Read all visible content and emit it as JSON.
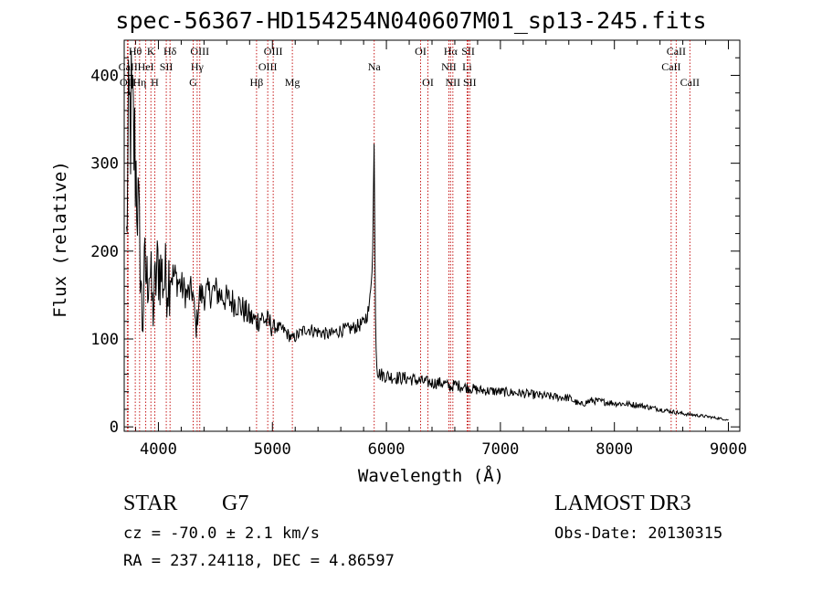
{
  "chart_data": {
    "type": "line",
    "title": "spec-56367-HD154254N040607M01_sp13-245.fits",
    "xlabel": "Wavelength (Å)",
    "ylabel": "Flux (relative)",
    "xlim": [
      3700,
      9100
    ],
    "ylim": [
      -5,
      440
    ],
    "xticks": [
      4000,
      5000,
      6000,
      7000,
      8000,
      9000
    ],
    "yticks": [
      0,
      100,
      200,
      300,
      400
    ],
    "grid": false,
    "lines": [
      {
        "label": "OII",
        "wave": 3727,
        "row": 3
      },
      {
        "label": "Hθ",
        "wave": 3797,
        "row": 1
      },
      {
        "label": "CaII",
        "wave": 3734,
        "row": 2
      },
      {
        "label": "Hη",
        "wave": 3835,
        "row": 3
      },
      {
        "label": "K",
        "wave": 3934,
        "row": 1
      },
      {
        "label": "HeI",
        "wave": 3889,
        "row": 2
      },
      {
        "label": "H",
        "wave": 3968,
        "row": 3
      },
      {
        "label": "Hδ",
        "wave": 4102,
        "row": 1
      },
      {
        "label": "SII",
        "wave": 4069,
        "row": 2
      },
      {
        "label": "OIII",
        "wave": 4363,
        "row": 1
      },
      {
        "label": "Hγ",
        "wave": 4340,
        "row": 2
      },
      {
        "label": "G",
        "wave": 4305,
        "row": 3
      },
      {
        "label": "OIII",
        "wave": 5007,
        "row": 1
      },
      {
        "label": "OIII",
        "wave": 4959,
        "row": 2
      },
      {
        "label": "Hβ",
        "wave": 4861,
        "row": 3
      },
      {
        "label": "Mg",
        "wave": 5175,
        "row": 3
      },
      {
        "label": "Na",
        "wave": 5893,
        "row": 2
      },
      {
        "label": "OI",
        "wave": 6300,
        "row": 1
      },
      {
        "label": "OI",
        "wave": 6364,
        "row": 3
      },
      {
        "label": "Hα",
        "wave": 6563,
        "row": 1
      },
      {
        "label": "NII",
        "wave": 6548,
        "row": 2
      },
      {
        "label": "NII",
        "wave": 6583,
        "row": 3
      },
      {
        "label": "SII",
        "wave": 6717,
        "row": 1
      },
      {
        "label": "Li",
        "wave": 6708,
        "row": 2
      },
      {
        "label": "SII",
        "wave": 6731,
        "row": 3
      },
      {
        "label": "CaII",
        "wave": 8542,
        "row": 1
      },
      {
        "label": "CaII",
        "wave": 8498,
        "row": 2
      },
      {
        "label": "CaII",
        "wave": 8662,
        "row": 3
      }
    ],
    "series": [
      {
        "name": "spectrum",
        "x": [
          3720,
          3740,
          3760,
          3780,
          3800,
          3820,
          3840,
          3860,
          3880,
          3900,
          3920,
          3950,
          3980,
          4000,
          4050,
          4100,
          4150,
          4200,
          4250,
          4300,
          4330,
          4360,
          4400,
          4500,
          4600,
          4700,
          4800,
          4860,
          4900,
          5000,
          5100,
          5175,
          5300,
          5400,
          5500,
          5600,
          5700,
          5800,
          5850,
          5880,
          5893,
          5905,
          5920,
          5940,
          6000,
          6100,
          6200,
          6300,
          6400,
          6500,
          6563,
          6600,
          6700,
          6800,
          7000,
          7200,
          7400,
          7600,
          7700,
          7800,
          8000,
          8200,
          8400,
          8600,
          8800,
          9000
        ],
        "y": [
          210,
          340,
          355,
          330,
          300,
          250,
          195,
          110,
          180,
          165,
          190,
          130,
          170,
          185,
          165,
          175,
          170,
          160,
          150,
          155,
          110,
          150,
          150,
          155,
          145,
          140,
          125,
          120,
          125,
          115,
          110,
          100,
          112,
          108,
          105,
          110,
          112,
          118,
          135,
          200,
          330,
          110,
          65,
          60,
          58,
          56,
          55,
          52,
          50,
          50,
          45,
          48,
          45,
          42,
          40,
          38,
          35,
          33,
          25,
          30,
          27,
          25,
          20,
          15,
          12,
          8
        ]
      }
    ]
  },
  "info": {
    "class": "STAR",
    "subclass": "G7",
    "survey": "LAMOST DR3",
    "cz": "cz = -70.0 ± 2.1 km/s",
    "obs_date": "Obs-Date: 20130315",
    "radec": "RA = 237.24118, DEC =   4.86597"
  }
}
